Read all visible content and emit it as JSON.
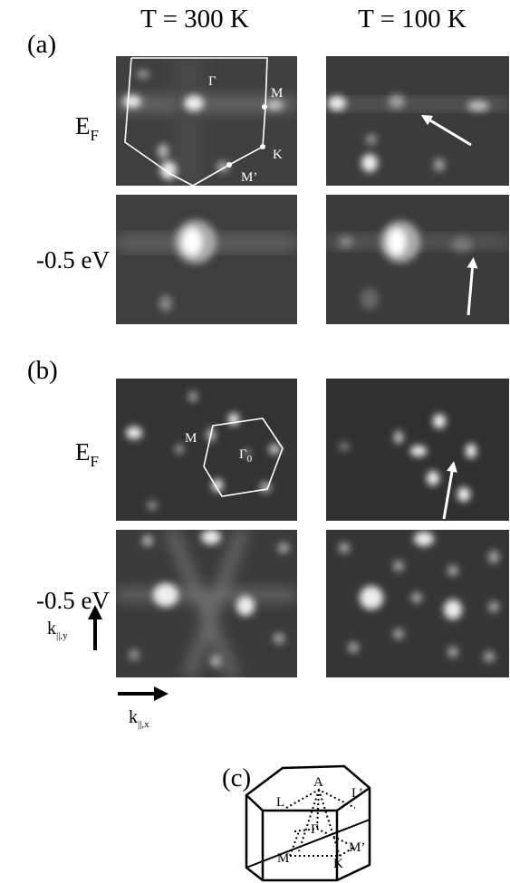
{
  "columns": [
    "T = 300 K",
    "T = 100 K"
  ],
  "panel_a": {
    "label": "(a)",
    "rows": [
      {
        "main": "E",
        "sub": "F"
      },
      {
        "main": "-0.5 eV"
      }
    ],
    "annotations": {
      "gamma": "Γ",
      "m": "M",
      "k": "K",
      "m_prime": "M’"
    }
  },
  "panel_b": {
    "label": "(b)",
    "rows": [
      {
        "main": "E",
        "sub": "F"
      },
      {
        "main": "-0.5 eV"
      }
    ],
    "annotations": {
      "m": "M",
      "gamma": {
        "main": "Γ",
        "sub": "0"
      }
    }
  },
  "axes": {
    "ky": {
      "main": "k",
      "sub": "||,y"
    },
    "kx": {
      "main": "k",
      "sub": "||,x"
    }
  },
  "panel_c": {
    "label": "(c)",
    "points": {
      "a": "A",
      "l": "L",
      "l_prime": "L’",
      "gamma": "Γ",
      "m": "M",
      "k": "K",
      "m_prime": "M’"
    }
  }
}
